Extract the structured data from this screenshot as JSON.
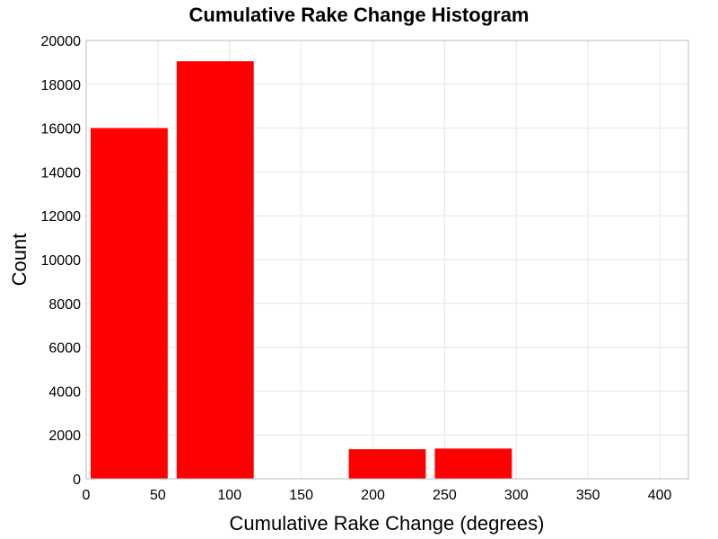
{
  "chart_data": {
    "type": "bar",
    "title": "Cumulative Rake Change Histogram",
    "xlabel": "Cumulative Rake Change (degrees)",
    "ylabel": "Count",
    "xlim": [
      0,
      420
    ],
    "ylim": [
      0,
      20000
    ],
    "xticks": [
      0,
      50,
      100,
      150,
      200,
      250,
      300,
      350,
      400
    ],
    "yticks": [
      0,
      2000,
      4000,
      6000,
      8000,
      10000,
      12000,
      14000,
      16000,
      18000,
      20000
    ],
    "grid": true,
    "bar_color": "#ff0000",
    "bins": [
      {
        "x0": 0,
        "x1": 60,
        "value": 16000
      },
      {
        "x0": 60,
        "x1": 120,
        "value": 19050
      },
      {
        "x0": 120,
        "x1": 180,
        "value": 0
      },
      {
        "x0": 180,
        "x1": 240,
        "value": 1350
      },
      {
        "x0": 240,
        "x1": 300,
        "value": 1380
      },
      {
        "x0": 300,
        "x1": 360,
        "value": 0
      },
      {
        "x0": 360,
        "x1": 420,
        "value": 20
      }
    ]
  }
}
